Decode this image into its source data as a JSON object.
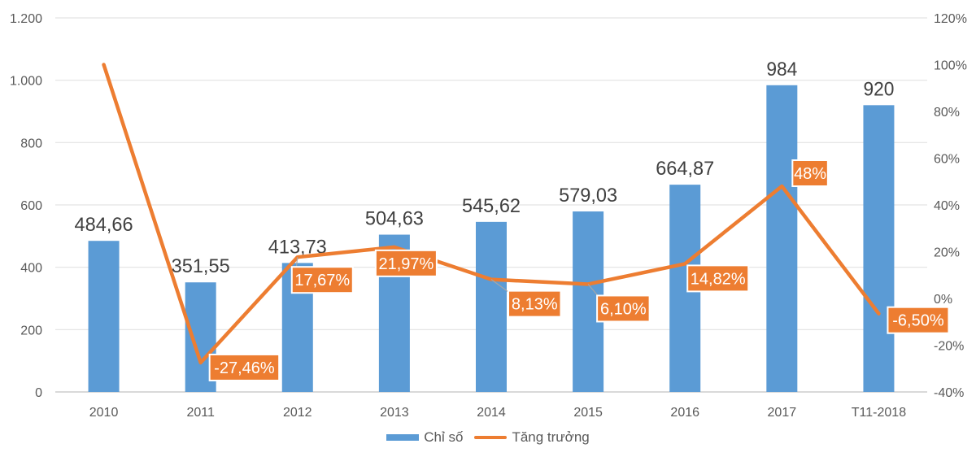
{
  "chart_data": {
    "type": "bar+line",
    "title": "",
    "categories": [
      "2010",
      "2011",
      "2012",
      "2013",
      "2014",
      "2015",
      "2016",
      "2017",
      "T11-2018"
    ],
    "series": [
      {
        "name": "Chỉ số",
        "type": "bar",
        "axis": "left",
        "color": "#5b9bd5",
        "values": [
          484.66,
          351.55,
          413.73,
          504.63,
          545.62,
          579.03,
          664.87,
          984,
          920
        ],
        "labels": [
          "484,66",
          "351,55",
          "413,73",
          "504,63",
          "545,62",
          "579,03",
          "664,87",
          "984",
          "920"
        ]
      },
      {
        "name": "Tăng trưởng",
        "type": "line",
        "axis": "right",
        "color": "#ed7d31",
        "values": [
          100,
          -27.46,
          17.67,
          21.97,
          8.13,
          6.1,
          14.82,
          48,
          -6.5
        ],
        "labels": [
          "",
          "-27,46%",
          "17,67%",
          "21,97%",
          "8,13%",
          "6,10%",
          "14,82%",
          "48%",
          "-6,50%"
        ]
      }
    ],
    "y_left": {
      "range": [
        0,
        1200
      ],
      "ticks": [
        0,
        200,
        400,
        600,
        800,
        1000,
        1200
      ],
      "tick_labels": [
        "0",
        "200",
        "400",
        "600",
        "800",
        "1.000",
        "1.200"
      ]
    },
    "y_right": {
      "range": [
        -40,
        120
      ],
      "ticks": [
        -40,
        -20,
        0,
        20,
        40,
        60,
        80,
        100,
        120
      ],
      "tick_labels": [
        "-40%",
        "-20%",
        "0%",
        "20%",
        "40%",
        "60%",
        "80%",
        "100%",
        "120%"
      ]
    },
    "xlabel": "",
    "ylabel": "",
    "grid": true,
    "legend": {
      "position": "bottom",
      "items": [
        "Chỉ số",
        "Tăng trưởng"
      ]
    }
  }
}
